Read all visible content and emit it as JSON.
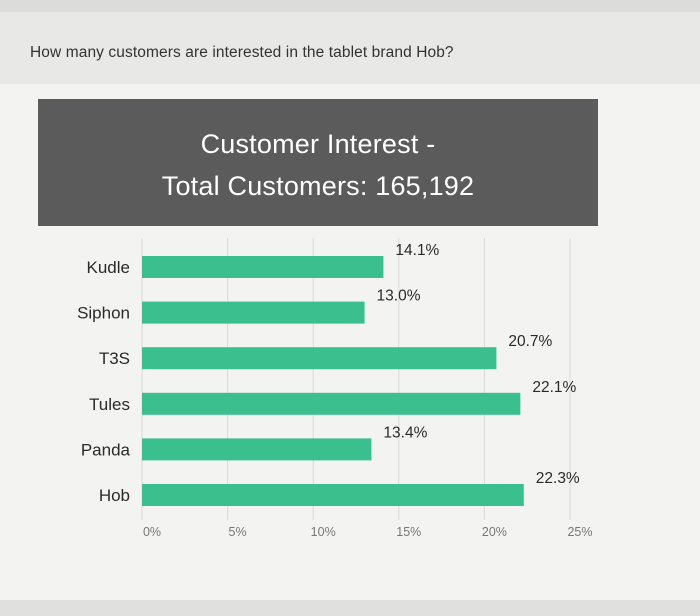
{
  "page": {
    "question": "How many customers are interested in the tablet brand Hob?"
  },
  "chart_data": {
    "type": "bar",
    "orientation": "horizontal",
    "title_line1": "Customer Interest -",
    "title_line2": "Total Customers: 165,192",
    "categories": [
      "Kudle",
      "Siphon",
      "T3S",
      "Tules",
      "Panda",
      "Hob"
    ],
    "values": [
      14.1,
      13.0,
      20.7,
      22.1,
      13.4,
      22.3
    ],
    "value_labels": [
      "14.1%",
      "13.0%",
      "20.7%",
      "22.1%",
      "13.4%",
      "22.3%"
    ],
    "x_ticks": [
      "0%",
      "5%",
      "10%",
      "15%",
      "20%",
      "25%"
    ],
    "xlim": [
      0,
      25
    ],
    "bar_color": "#3cbf8f",
    "title_bg_color": "#5b5b5b",
    "grid": true,
    "legend": "none"
  }
}
